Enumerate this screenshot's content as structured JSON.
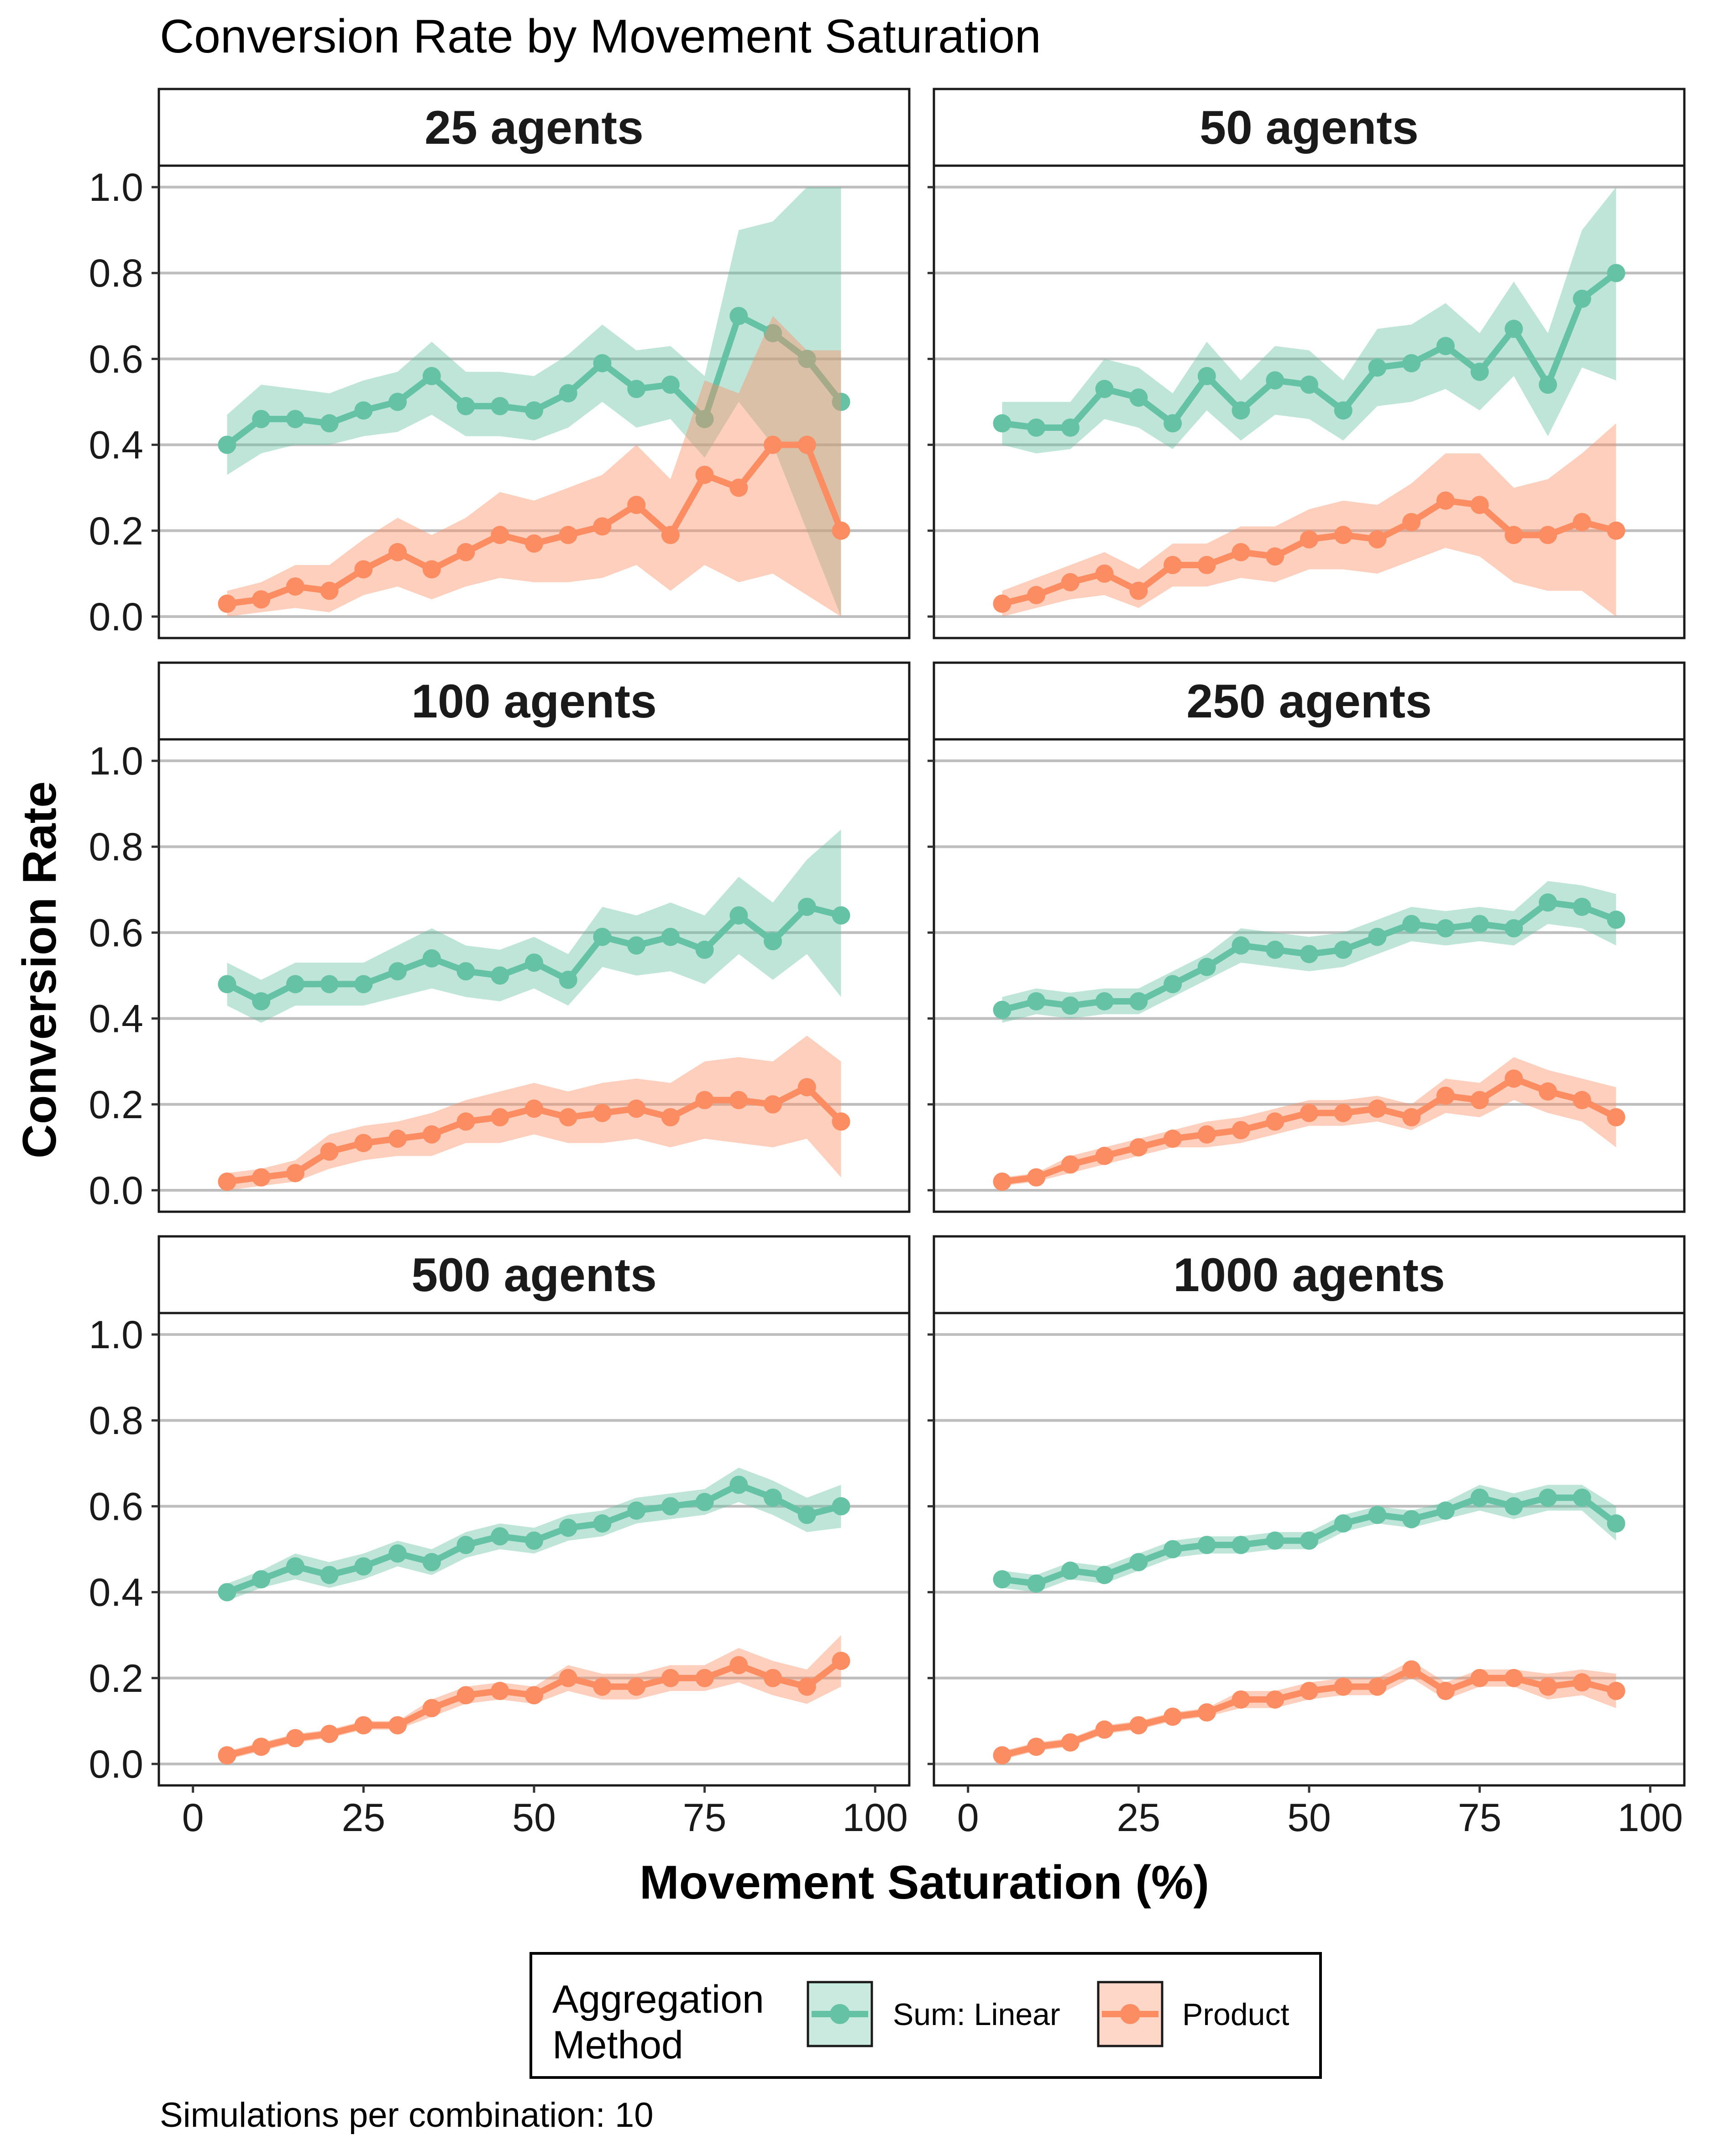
{
  "chart_data": {
    "type": "line",
    "title": "Conversion Rate by Movement Saturation",
    "xlabel": "Movement Saturation (%)",
    "ylabel": "Conversion Rate",
    "xlim": [
      -5,
      105
    ],
    "ylim": [
      -0.05,
      1.05
    ],
    "x_ticks": [
      0,
      25,
      50,
      75,
      100
    ],
    "y_ticks": [
      0.0,
      0.2,
      0.4,
      0.6,
      0.8,
      1.0
    ],
    "x_tick_labels": [
      "0",
      "25",
      "50",
      "75",
      "100"
    ],
    "y_tick_labels": [
      "0.0",
      "0.2",
      "0.4",
      "0.6",
      "0.8",
      "1.0"
    ],
    "grid": "horizontal major",
    "x": [
      5,
      10,
      15,
      20,
      25,
      30,
      35,
      40,
      45,
      50,
      55,
      60,
      65,
      70,
      75,
      80,
      85,
      90,
      95
    ],
    "legend": {
      "title": "Aggregation Method",
      "title_lines": [
        "Aggregation",
        "Method"
      ],
      "placement": "bottom",
      "entries": [
        "Sum: Linear",
        "Product"
      ]
    },
    "colors": {
      "Sum: Linear": "#66c2a5",
      "Product": "#fc8d62"
    },
    "caption": "Simulations per combination: 10",
    "panels": [
      {
        "label": "25 agents",
        "series": [
          {
            "name": "Sum: Linear",
            "mean": [
              0.4,
              0.46,
              0.46,
              0.45,
              0.48,
              0.5,
              0.56,
              0.49,
              0.49,
              0.48,
              0.52,
              0.59,
              0.53,
              0.54,
              0.46,
              0.7,
              0.66,
              0.6,
              0.5
            ],
            "lower": [
              0.33,
              0.38,
              0.4,
              0.4,
              0.42,
              0.43,
              0.47,
              0.42,
              0.42,
              0.41,
              0.44,
              0.5,
              0.44,
              0.46,
              0.37,
              0.5,
              0.4,
              0.2,
              0.0
            ],
            "upper": [
              0.47,
              0.54,
              0.53,
              0.52,
              0.55,
              0.57,
              0.64,
              0.57,
              0.57,
              0.56,
              0.61,
              0.68,
              0.62,
              0.63,
              0.56,
              0.9,
              0.92,
              1.0,
              1.0
            ]
          },
          {
            "name": "Product",
            "mean": [
              0.03,
              0.04,
              0.07,
              0.06,
              0.11,
              0.15,
              0.11,
              0.15,
              0.19,
              0.17,
              0.19,
              0.21,
              0.26,
              0.19,
              0.33,
              0.3,
              0.4,
              0.4,
              0.2
            ],
            "lower": [
              0.0,
              0.01,
              0.02,
              0.01,
              0.05,
              0.07,
              0.04,
              0.07,
              0.09,
              0.08,
              0.08,
              0.09,
              0.12,
              0.06,
              0.12,
              0.08,
              0.1,
              0.05,
              0.0
            ],
            "upper": [
              0.06,
              0.08,
              0.12,
              0.12,
              0.18,
              0.23,
              0.19,
              0.23,
              0.29,
              0.27,
              0.3,
              0.33,
              0.4,
              0.32,
              0.55,
              0.52,
              0.7,
              0.62,
              0.62
            ]
          }
        ]
      },
      {
        "label": "50 agents",
        "series": [
          {
            "name": "Sum: Linear",
            "mean": [
              0.45,
              0.44,
              0.44,
              0.53,
              0.51,
              0.45,
              0.56,
              0.48,
              0.55,
              0.54,
              0.48,
              0.58,
              0.59,
              0.63,
              0.57,
              0.67,
              0.54,
              0.74,
              0.8
            ],
            "lower": [
              0.4,
              0.38,
              0.39,
              0.46,
              0.44,
              0.39,
              0.48,
              0.41,
              0.47,
              0.46,
              0.41,
              0.49,
              0.5,
              0.53,
              0.48,
              0.56,
              0.42,
              0.58,
              0.55
            ],
            "upper": [
              0.5,
              0.5,
              0.5,
              0.6,
              0.58,
              0.52,
              0.64,
              0.55,
              0.63,
              0.62,
              0.55,
              0.67,
              0.68,
              0.73,
              0.66,
              0.78,
              0.66,
              0.9,
              1.0
            ]
          },
          {
            "name": "Product",
            "mean": [
              0.03,
              0.05,
              0.08,
              0.1,
              0.06,
              0.12,
              0.12,
              0.15,
              0.14,
              0.18,
              0.19,
              0.18,
              0.22,
              0.27,
              0.26,
              0.19,
              0.19,
              0.22,
              0.2
            ],
            "lower": [
              0.0,
              0.02,
              0.04,
              0.05,
              0.02,
              0.07,
              0.07,
              0.09,
              0.08,
              0.11,
              0.11,
              0.1,
              0.13,
              0.16,
              0.14,
              0.08,
              0.06,
              0.06,
              0.0
            ],
            "upper": [
              0.06,
              0.09,
              0.12,
              0.15,
              0.11,
              0.17,
              0.17,
              0.21,
              0.21,
              0.25,
              0.27,
              0.26,
              0.31,
              0.38,
              0.38,
              0.3,
              0.32,
              0.38,
              0.45
            ]
          }
        ]
      },
      {
        "label": "100 agents",
        "series": [
          {
            "name": "Sum: Linear",
            "mean": [
              0.48,
              0.44,
              0.48,
              0.48,
              0.48,
              0.51,
              0.54,
              0.51,
              0.5,
              0.53,
              0.49,
              0.59,
              0.57,
              0.59,
              0.56,
              0.64,
              0.58,
              0.66,
              0.64
            ],
            "lower": [
              0.43,
              0.39,
              0.43,
              0.43,
              0.43,
              0.45,
              0.47,
              0.45,
              0.44,
              0.47,
              0.43,
              0.52,
              0.5,
              0.51,
              0.48,
              0.55,
              0.49,
              0.55,
              0.45
            ],
            "upper": [
              0.53,
              0.49,
              0.53,
              0.53,
              0.53,
              0.57,
              0.61,
              0.57,
              0.56,
              0.59,
              0.55,
              0.66,
              0.64,
              0.67,
              0.64,
              0.73,
              0.67,
              0.77,
              0.84
            ]
          },
          {
            "name": "Product",
            "mean": [
              0.02,
              0.03,
              0.04,
              0.09,
              0.11,
              0.12,
              0.13,
              0.16,
              0.17,
              0.19,
              0.17,
              0.18,
              0.19,
              0.17,
              0.21,
              0.21,
              0.2,
              0.24,
              0.16
            ],
            "lower": [
              0.0,
              0.01,
              0.02,
              0.05,
              0.07,
              0.08,
              0.08,
              0.11,
              0.11,
              0.13,
              0.11,
              0.11,
              0.12,
              0.1,
              0.12,
              0.11,
              0.1,
              0.12,
              0.03
            ],
            "upper": [
              0.04,
              0.05,
              0.07,
              0.13,
              0.15,
              0.16,
              0.18,
              0.21,
              0.23,
              0.25,
              0.23,
              0.25,
              0.26,
              0.25,
              0.3,
              0.31,
              0.3,
              0.36,
              0.3
            ]
          }
        ]
      },
      {
        "label": "250 agents",
        "series": [
          {
            "name": "Sum: Linear",
            "mean": [
              0.42,
              0.44,
              0.43,
              0.44,
              0.44,
              0.48,
              0.52,
              0.57,
              0.56,
              0.55,
              0.56,
              0.59,
              0.62,
              0.61,
              0.62,
              0.61,
              0.67,
              0.66,
              0.63
            ],
            "lower": [
              0.39,
              0.41,
              0.4,
              0.41,
              0.41,
              0.45,
              0.49,
              0.53,
              0.52,
              0.51,
              0.52,
              0.55,
              0.58,
              0.57,
              0.58,
              0.57,
              0.62,
              0.61,
              0.57
            ],
            "upper": [
              0.45,
              0.47,
              0.46,
              0.47,
              0.47,
              0.51,
              0.55,
              0.61,
              0.6,
              0.59,
              0.6,
              0.63,
              0.66,
              0.65,
              0.66,
              0.65,
              0.72,
              0.71,
              0.69
            ]
          },
          {
            "name": "Product",
            "mean": [
              0.02,
              0.03,
              0.06,
              0.08,
              0.1,
              0.12,
              0.13,
              0.14,
              0.16,
              0.18,
              0.18,
              0.19,
              0.17,
              0.22,
              0.21,
              0.26,
              0.23,
              0.21,
              0.17
            ],
            "lower": [
              0.01,
              0.02,
              0.04,
              0.06,
              0.08,
              0.1,
              0.1,
              0.11,
              0.13,
              0.15,
              0.15,
              0.16,
              0.14,
              0.18,
              0.17,
              0.21,
              0.18,
              0.16,
              0.1
            ],
            "upper": [
              0.03,
              0.04,
              0.08,
              0.1,
              0.12,
              0.14,
              0.16,
              0.17,
              0.19,
              0.21,
              0.21,
              0.22,
              0.2,
              0.26,
              0.25,
              0.31,
              0.28,
              0.26,
              0.24
            ]
          }
        ]
      },
      {
        "label": "500 agents",
        "series": [
          {
            "name": "Sum: Linear",
            "mean": [
              0.4,
              0.43,
              0.46,
              0.44,
              0.46,
              0.49,
              0.47,
              0.51,
              0.53,
              0.52,
              0.55,
              0.56,
              0.59,
              0.6,
              0.61,
              0.65,
              0.62,
              0.58,
              0.6
            ],
            "lower": [
              0.38,
              0.41,
              0.43,
              0.41,
              0.43,
              0.46,
              0.44,
              0.48,
              0.5,
              0.49,
              0.52,
              0.53,
              0.56,
              0.57,
              0.58,
              0.61,
              0.58,
              0.54,
              0.55
            ],
            "upper": [
              0.42,
              0.45,
              0.49,
              0.47,
              0.49,
              0.52,
              0.5,
              0.54,
              0.56,
              0.55,
              0.58,
              0.59,
              0.62,
              0.63,
              0.64,
              0.69,
              0.66,
              0.62,
              0.65
            ]
          },
          {
            "name": "Product",
            "mean": [
              0.02,
              0.04,
              0.06,
              0.07,
              0.09,
              0.09,
              0.13,
              0.16,
              0.17,
              0.16,
              0.2,
              0.18,
              0.18,
              0.2,
              0.2,
              0.23,
              0.2,
              0.18,
              0.24
            ],
            "lower": [
              0.01,
              0.03,
              0.05,
              0.06,
              0.08,
              0.08,
              0.11,
              0.14,
              0.15,
              0.14,
              0.17,
              0.15,
              0.15,
              0.17,
              0.17,
              0.19,
              0.16,
              0.14,
              0.18
            ],
            "upper": [
              0.03,
              0.05,
              0.07,
              0.08,
              0.1,
              0.1,
              0.15,
              0.18,
              0.19,
              0.18,
              0.23,
              0.21,
              0.21,
              0.23,
              0.23,
              0.27,
              0.24,
              0.22,
              0.3
            ]
          }
        ]
      },
      {
        "label": "1000 agents",
        "series": [
          {
            "name": "Sum: Linear",
            "mean": [
              0.43,
              0.42,
              0.45,
              0.44,
              0.47,
              0.5,
              0.51,
              0.51,
              0.52,
              0.52,
              0.56,
              0.58,
              0.57,
              0.59,
              0.62,
              0.6,
              0.62,
              0.62,
              0.56
            ],
            "lower": [
              0.41,
              0.4,
              0.43,
              0.42,
              0.45,
              0.48,
              0.49,
              0.49,
              0.5,
              0.5,
              0.54,
              0.56,
              0.55,
              0.57,
              0.59,
              0.57,
              0.59,
              0.59,
              0.52
            ],
            "upper": [
              0.45,
              0.44,
              0.47,
              0.46,
              0.49,
              0.52,
              0.53,
              0.53,
              0.54,
              0.54,
              0.58,
              0.6,
              0.59,
              0.61,
              0.65,
              0.63,
              0.65,
              0.65,
              0.6
            ]
          },
          {
            "name": "Product",
            "mean": [
              0.02,
              0.04,
              0.05,
              0.08,
              0.09,
              0.11,
              0.12,
              0.15,
              0.15,
              0.17,
              0.18,
              0.18,
              0.22,
              0.17,
              0.2,
              0.2,
              0.18,
              0.19,
              0.17
            ],
            "lower": [
              0.01,
              0.03,
              0.04,
              0.07,
              0.08,
              0.1,
              0.11,
              0.13,
              0.13,
              0.15,
              0.16,
              0.16,
              0.2,
              0.15,
              0.18,
              0.18,
              0.15,
              0.16,
              0.13
            ],
            "upper": [
              0.03,
              0.05,
              0.06,
              0.09,
              0.1,
              0.12,
              0.13,
              0.17,
              0.17,
              0.19,
              0.2,
              0.2,
              0.24,
              0.19,
              0.22,
              0.22,
              0.21,
              0.22,
              0.21
            ]
          }
        ]
      }
    ]
  }
}
